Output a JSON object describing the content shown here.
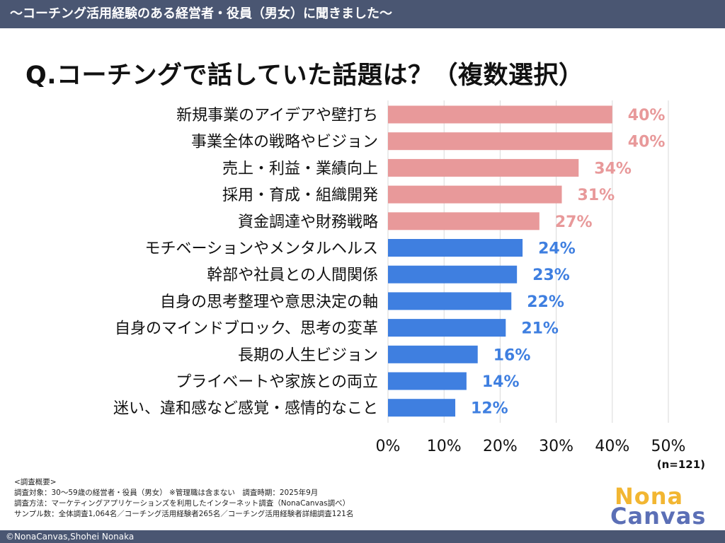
{
  "header": {
    "title": "〜コーチング活用経験のある経営者・役員（男女）に聞きました〜"
  },
  "question": "Q.コーチングで話していた話題は？（複数選択）",
  "chart_data": {
    "type": "bar",
    "orientation": "horizontal",
    "title": "Q.コーチングで話していた話題は？（複数選択）",
    "categories": [
      "新規事業のアイデアや壁打ち",
      "事業全体の戦略やビジョン",
      "売上・利益・業績向上",
      "採用・育成・組織開発",
      "資金調達や財務戦略",
      "モチベーションやメンタルヘルス",
      "幹部や社員との人間関係",
      "自身の思考整理や意思決定の軸",
      "自身のマインドブロック、思考の変革",
      "長期の人生ビジョン",
      "プライベートや家族との両立",
      "迷い、違和感など感覚・感情的なこと"
    ],
    "values": [
      40,
      40,
      34,
      31,
      27,
      24,
      23,
      22,
      21,
      16,
      14,
      12
    ],
    "value_labels": [
      "40%",
      "40%",
      "34%",
      "31%",
      "27%",
      "24%",
      "23%",
      "22%",
      "21%",
      "16%",
      "14%",
      "12%"
    ],
    "xlim": [
      0,
      50
    ],
    "xticks": [
      0,
      10,
      20,
      30,
      40,
      50
    ],
    "xtick_labels": [
      "0%",
      "10%",
      "20%",
      "30%",
      "40%",
      "50%"
    ],
    "colors": [
      "#e8999a",
      "#e8999a",
      "#e8999a",
      "#e8999a",
      "#e8999a",
      "#3f7fe0",
      "#3f7fe0",
      "#3f7fe0",
      "#3f7fe0",
      "#3f7fe0",
      "#3f7fe0",
      "#3f7fe0"
    ],
    "grid": true,
    "sample_size": "(n=121)"
  },
  "survey_notes": {
    "heading": "<調査概要>",
    "target": "調査対象：30〜59歳の経営者・役員（男女） ※管理職は含まない　調査時期：2025年9月",
    "method": "調査方法：マーケティングアプリケーションズを利用したインターネット調査（NonaCanvas調べ）",
    "sample": "サンプル数：全体調査1,064名／コーチング活用経験者265名／コーチング活用経験者詳細調査121名"
  },
  "logo": {
    "line1": "Nona",
    "line2": "Canvas"
  },
  "footer": {
    "copyright": "©NonaCanvas,Shohei Nonaka"
  }
}
